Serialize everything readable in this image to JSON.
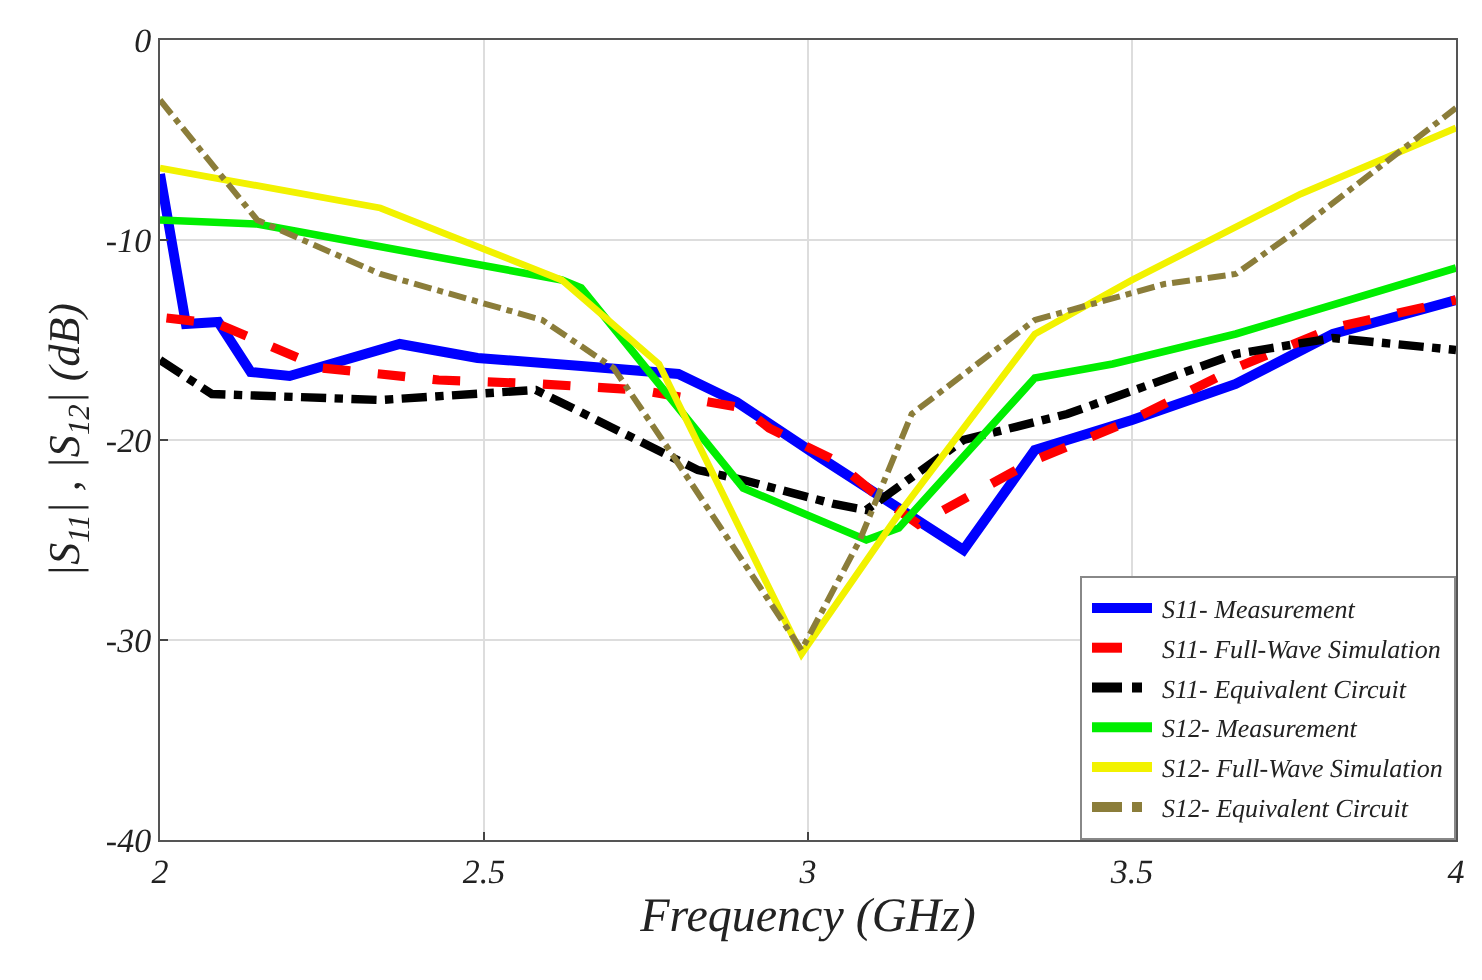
{
  "chart_data": {
    "type": "line",
    "xlabel": "Frequency (GHz)",
    "ylabel": "|S$_{11}$| , |S$_{12}$| (dB)",
    "xlim": [
      2,
      4
    ],
    "ylim": [
      -40,
      0
    ],
    "xticks": [
      2,
      2.5,
      3,
      3.5,
      4
    ],
    "yticks": [
      -40,
      -30,
      -20,
      -10,
      0
    ],
    "grid": true,
    "legend": "bottom right",
    "series": [
      {
        "name": "S11- Measurement",
        "color": "#0000ff",
        "line_style": "solid",
        "x": [
          2.0,
          2.04,
          2.09,
          2.14,
          2.2,
          2.37,
          2.49,
          2.65,
          2.8,
          2.89,
          3.02,
          3.13,
          3.24,
          3.35,
          3.5,
          3.66,
          3.81,
          4.0
        ],
        "values": [
          -6.7,
          -14.2,
          -14.1,
          -16.6,
          -16.8,
          -15.2,
          -15.9,
          -16.3,
          -16.7,
          -18.1,
          -20.9,
          -23.2,
          -25.5,
          -20.5,
          -19,
          -17.2,
          -14.7,
          -13
        ]
      },
      {
        "name": "S11- Full-Wave Simulation",
        "color": "#ff0000",
        "line_style": "dashed",
        "x": [
          2.01,
          2.09,
          2.25,
          2.43,
          2.59,
          2.74,
          2.9,
          2.94,
          3.04,
          3.1,
          3.17,
          3.35,
          3.5,
          3.66,
          3.81,
          4.0
        ],
        "values": [
          -13.9,
          -14.2,
          -16.4,
          -17,
          -17.2,
          -17.5,
          -18.4,
          -19.4,
          -21,
          -22.6,
          -24.2,
          -21,
          -19,
          -16.4,
          -14.4,
          -13
        ]
      },
      {
        "name": "S11- Equivalent Circuit",
        "color": "#000000",
        "line_style": "dashdot",
        "x": [
          2.0,
          2.08,
          2.34,
          2.58,
          2.83,
          2.9,
          3.04,
          3.09,
          3.24,
          3.4,
          3.66,
          3.81,
          4.0
        ],
        "values": [
          -16,
          -17.7,
          -18,
          -17.5,
          -21.5,
          -22,
          -23.2,
          -23.5,
          -20,
          -18.7,
          -15.7,
          -14.9,
          -15.5
        ]
      },
      {
        "name": "S12- Measurement",
        "color": "#00ee00",
        "line_style": "solid",
        "x": [
          2.0,
          2.15,
          2.62,
          2.65,
          2.9,
          3.09,
          3.14,
          3.35,
          3.47,
          3.66,
          4.0
        ],
        "values": [
          -9,
          -9.2,
          -12,
          -12.4,
          -22.4,
          -25,
          -24.4,
          -16.9,
          -16.2,
          -14.7,
          -11.4
        ]
      },
      {
        "name": "S12- Full-Wave Simulation",
        "color": "#f2f200",
        "line_style": "solid",
        "x": [
          2.0,
          2.34,
          2.62,
          2.77,
          2.99,
          3.14,
          3.35,
          3.5,
          3.76,
          4.0
        ],
        "values": [
          -6.4,
          -8.4,
          -12,
          -16.2,
          -30.7,
          -23.7,
          -14.7,
          -12,
          -7.7,
          -4.4
        ]
      },
      {
        "name": "S12- Equivalent Circuit",
        "color": "#8b7d3a",
        "line_style": "dashdot",
        "x": [
          2.0,
          2.15,
          2.34,
          2.59,
          2.7,
          2.79,
          2.99,
          3.08,
          3.16,
          3.35,
          3.55,
          3.66,
          3.76,
          4.0
        ],
        "values": [
          -3,
          -9,
          -11.7,
          -14,
          -16.4,
          -20.7,
          -30.5,
          -25,
          -18.7,
          -14,
          -12.2,
          -11.7,
          -9.4,
          -3.4
        ]
      }
    ]
  }
}
